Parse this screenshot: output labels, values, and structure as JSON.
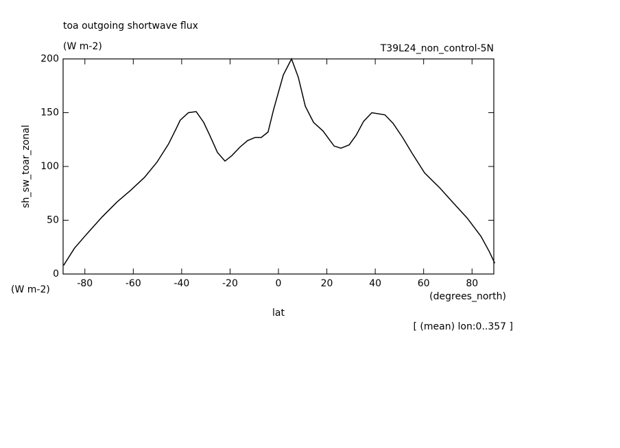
{
  "chart_data": {
    "type": "line",
    "title": "toa outgoing shortwave flux",
    "subtitle": "(W m-2)",
    "run_label": "T39L24_non_control-5N",
    "y_label": "sh_sw_toar_zonal",
    "y_units": "(W m-2)",
    "x_units": "(degrees_north)",
    "x_label": "lat",
    "annotation": "[ (mean) lon:0..357 ]",
    "x": [
      -88.8,
      -84.3,
      -78.9,
      -72.9,
      -66.7,
      -61,
      -55.3,
      -50.2,
      -45.4,
      -42.3,
      -40.6,
      -37.2,
      -34,
      -30.9,
      -28.4,
      -25.2,
      -22.1,
      -19.3,
      -15.9,
      -12.8,
      -9.6,
      -7.1,
      -4.3,
      -2,
      2,
      5.4,
      8.2,
      11.1,
      14.5,
      18.4,
      23,
      25.8,
      29.2,
      32.1,
      35.2,
      38.6,
      44,
      47.4,
      51.3,
      55.3,
      60.4,
      66.7,
      72.3,
      78,
      83.7,
      87.1,
      89.4
    ],
    "series": [
      {
        "name": "sh_sw_toar_zonal",
        "color": "#000000",
        "values": [
          8,
          24,
          38,
          53,
          67,
          78,
          90,
          104,
          121,
          135,
          143,
          150,
          151,
          141,
          129,
          113,
          105,
          110,
          118,
          124,
          127,
          127,
          132,
          153,
          185,
          200,
          183,
          156,
          141,
          133,
          119,
          117,
          120,
          129,
          142,
          150,
          148,
          140,
          127,
          112,
          94,
          80,
          66,
          52,
          35,
          21,
          10
        ]
      }
    ],
    "xlim": [
      -89,
      89
    ],
    "ylim": [
      0,
      200
    ],
    "xticks": [
      -80,
      -60,
      -40,
      -20,
      0,
      20,
      40,
      60,
      80
    ],
    "yticks": [
      0,
      50,
      100,
      150,
      200
    ],
    "grid": false
  }
}
